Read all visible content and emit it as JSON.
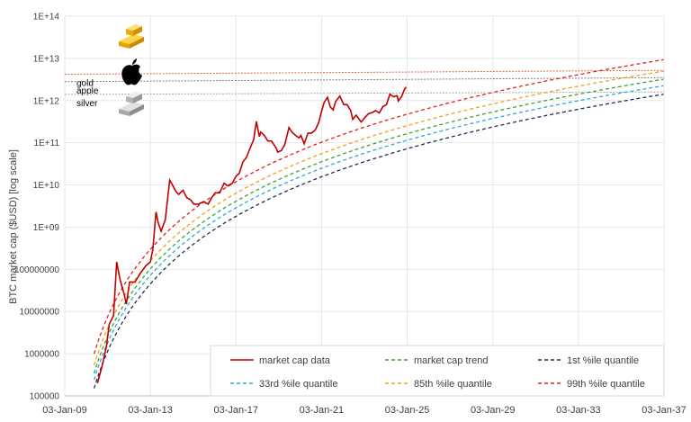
{
  "chart_data": {
    "type": "line",
    "title": "",
    "ylabel": "BTC market cap ($USD) [log scale]",
    "xlabel": "",
    "y_scale": "log",
    "ylim": [
      100000,
      100000000000000
    ],
    "xlim": [
      "2009-01-03",
      "2037-01-03"
    ],
    "y_ticks": [
      {
        "value": 100000,
        "label": "100000"
      },
      {
        "value": 1000000,
        "label": "1000000"
      },
      {
        "value": 10000000,
        "label": "10000000"
      },
      {
        "value": 100000000,
        "label": "100000000"
      },
      {
        "value": 1000000000,
        "label": "1E+09"
      },
      {
        "value": 10000000000,
        "label": "1E+10"
      },
      {
        "value": 100000000000,
        "label": "1E+11"
      },
      {
        "value": 1000000000000,
        "label": "1E+12"
      },
      {
        "value": 10000000000000,
        "label": "1E+13"
      },
      {
        "value": 100000000000000,
        "label": "1E+14"
      }
    ],
    "x_ticks": [
      {
        "value": "2009-01-03",
        "label": "03-Jan-09"
      },
      {
        "value": "2013-01-03",
        "label": "03-Jan-13"
      },
      {
        "value": "2017-01-03",
        "label": "03-Jan-17"
      },
      {
        "value": "2021-01-03",
        "label": "03-Jan-21"
      },
      {
        "value": "2025-01-03",
        "label": "03-Jan-25"
      },
      {
        "value": "2029-01-03",
        "label": "03-Jan-29"
      },
      {
        "value": "2033-01-03",
        "label": "03-Jan-33"
      },
      {
        "value": "2037-01-03",
        "label": "03-Jan-37"
      }
    ],
    "reference_lines": [
      {
        "name": "gold",
        "value_start": 4200000000000,
        "value_end": 5200000000000,
        "color": "#e8643c",
        "icon": "gold-bar-icon"
      },
      {
        "name": "apple",
        "value_start": 2800000000000,
        "value_end": 3500000000000,
        "color": "#7f7f7f",
        "icon": "apple-logo-icon"
      },
      {
        "name": "silver",
        "value_start": 1400000000000,
        "value_end": 1600000000000,
        "color": "#a6a6a6",
        "icon": "silver-bar-icon"
      }
    ],
    "quantile_multipliers": {
      "1st": 0.44,
      "33rd": 0.7,
      "trend": 1.0,
      "85th": 1.55,
      "99th": 2.9
    },
    "series": [
      {
        "name": "market cap data",
        "color": "#c00000",
        "dash": "solid",
        "x": [
          "2010-07-15",
          "2010-10-01",
          "2010-12-15",
          "2011-02-01",
          "2011-04-15",
          "2011-06-08",
          "2011-08-01",
          "2011-10-15",
          "2011-11-20",
          "2012-01-15",
          "2012-04-15",
          "2012-07-15",
          "2012-10-15",
          "2013-01-03",
          "2013-02-15",
          "2013-04-09",
          "2013-05-15",
          "2013-07-05",
          "2013-09-15",
          "2013-11-29",
          "2014-01-15",
          "2014-03-15",
          "2014-05-01",
          "2014-07-15",
          "2014-09-15",
          "2014-11-15",
          "2015-01-15",
          "2015-04-01",
          "2015-07-01",
          "2015-09-15",
          "2015-11-15",
          "2016-01-15",
          "2016-04-01",
          "2016-06-15",
          "2016-08-15",
          "2016-11-01",
          "2017-01-03",
          "2017-03-01",
          "2017-05-01",
          "2017-07-01",
          "2017-09-01",
          "2017-11-01",
          "2017-12-17",
          "2018-02-06",
          "2018-03-01",
          "2018-05-01",
          "2018-07-01",
          "2018-09-01",
          "2018-11-20",
          "2018-12-15",
          "2019-02-15",
          "2019-04-15",
          "2019-06-26",
          "2019-08-15",
          "2019-10-15",
          "2019-12-15",
          "2020-01-15",
          "2020-03-12",
          "2020-05-15",
          "2020-07-15",
          "2020-09-15",
          "2020-11-15",
          "2021-01-01",
          "2021-02-15",
          "2021-04-14",
          "2021-06-01",
          "2021-07-20",
          "2021-09-01",
          "2021-11-10",
          "2022-01-15",
          "2022-03-15",
          "2022-05-15",
          "2022-06-18",
          "2022-08-15",
          "2022-11-09",
          "2023-01-15",
          "2023-03-15",
          "2023-05-15",
          "2023-07-15",
          "2023-09-15",
          "2023-11-15",
          "2024-01-15",
          "2024-03-14",
          "2024-05-15",
          "2024-07-15",
          "2024-08-05",
          "2024-10-01",
          "2024-11-15",
          "2024-12-17"
        ],
        "y": [
          200000,
          500000,
          1500000,
          5000000,
          8000000,
          150000000,
          60000000,
          25000000,
          15000000,
          50000000,
          50000000,
          80000000,
          120000000,
          150000000,
          300000000,
          2300000000,
          1300000000,
          800000000,
          1500000000,
          13000000000,
          10000000000,
          7000000000,
          6000000000,
          7500000000,
          5000000000,
          4500000000,
          3500000000,
          3500000000,
          4000000000,
          3500000000,
          5000000000,
          6500000000,
          6500000000,
          11000000000,
          9500000000,
          11000000000,
          16000000000,
          19000000000,
          35000000000,
          45000000000,
          75000000000,
          120000000000,
          320000000000,
          140000000000,
          180000000000,
          150000000000,
          110000000000,
          110000000000,
          75000000000,
          60000000000,
          65000000000,
          90000000000,
          230000000000,
          180000000000,
          150000000000,
          130000000000,
          150000000000,
          95000000000,
          170000000000,
          170000000000,
          200000000000,
          300000000000,
          550000000000,
          900000000000,
          1200000000000,
          700000000000,
          600000000000,
          950000000000,
          1280000000000,
          800000000000,
          800000000000,
          580000000000,
          360000000000,
          450000000000,
          310000000000,
          400000000000,
          490000000000,
          520000000000,
          580000000000,
          510000000000,
          720000000000,
          800000000000,
          1420000000000,
          1230000000000,
          1300000000000,
          980000000000,
          1250000000000,
          1800000000000,
          2100000000000
        ]
      },
      {
        "name": "market cap trend",
        "color": "#3aa535",
        "dash": "4,3"
      },
      {
        "name": "1st %ile quantile",
        "color": "#1f2d5c",
        "dash": "4,3"
      },
      {
        "name": "33rd %ile quantile",
        "color": "#2fa8d8",
        "dash": "4,3"
      },
      {
        "name": "85th %ile quantile",
        "color": "#f0a020",
        "dash": "4,3"
      },
      {
        "name": "99th %ile quantile",
        "color": "#e02020",
        "dash": "4,3"
      }
    ],
    "legend_position": "bottom-right",
    "grid": true
  }
}
